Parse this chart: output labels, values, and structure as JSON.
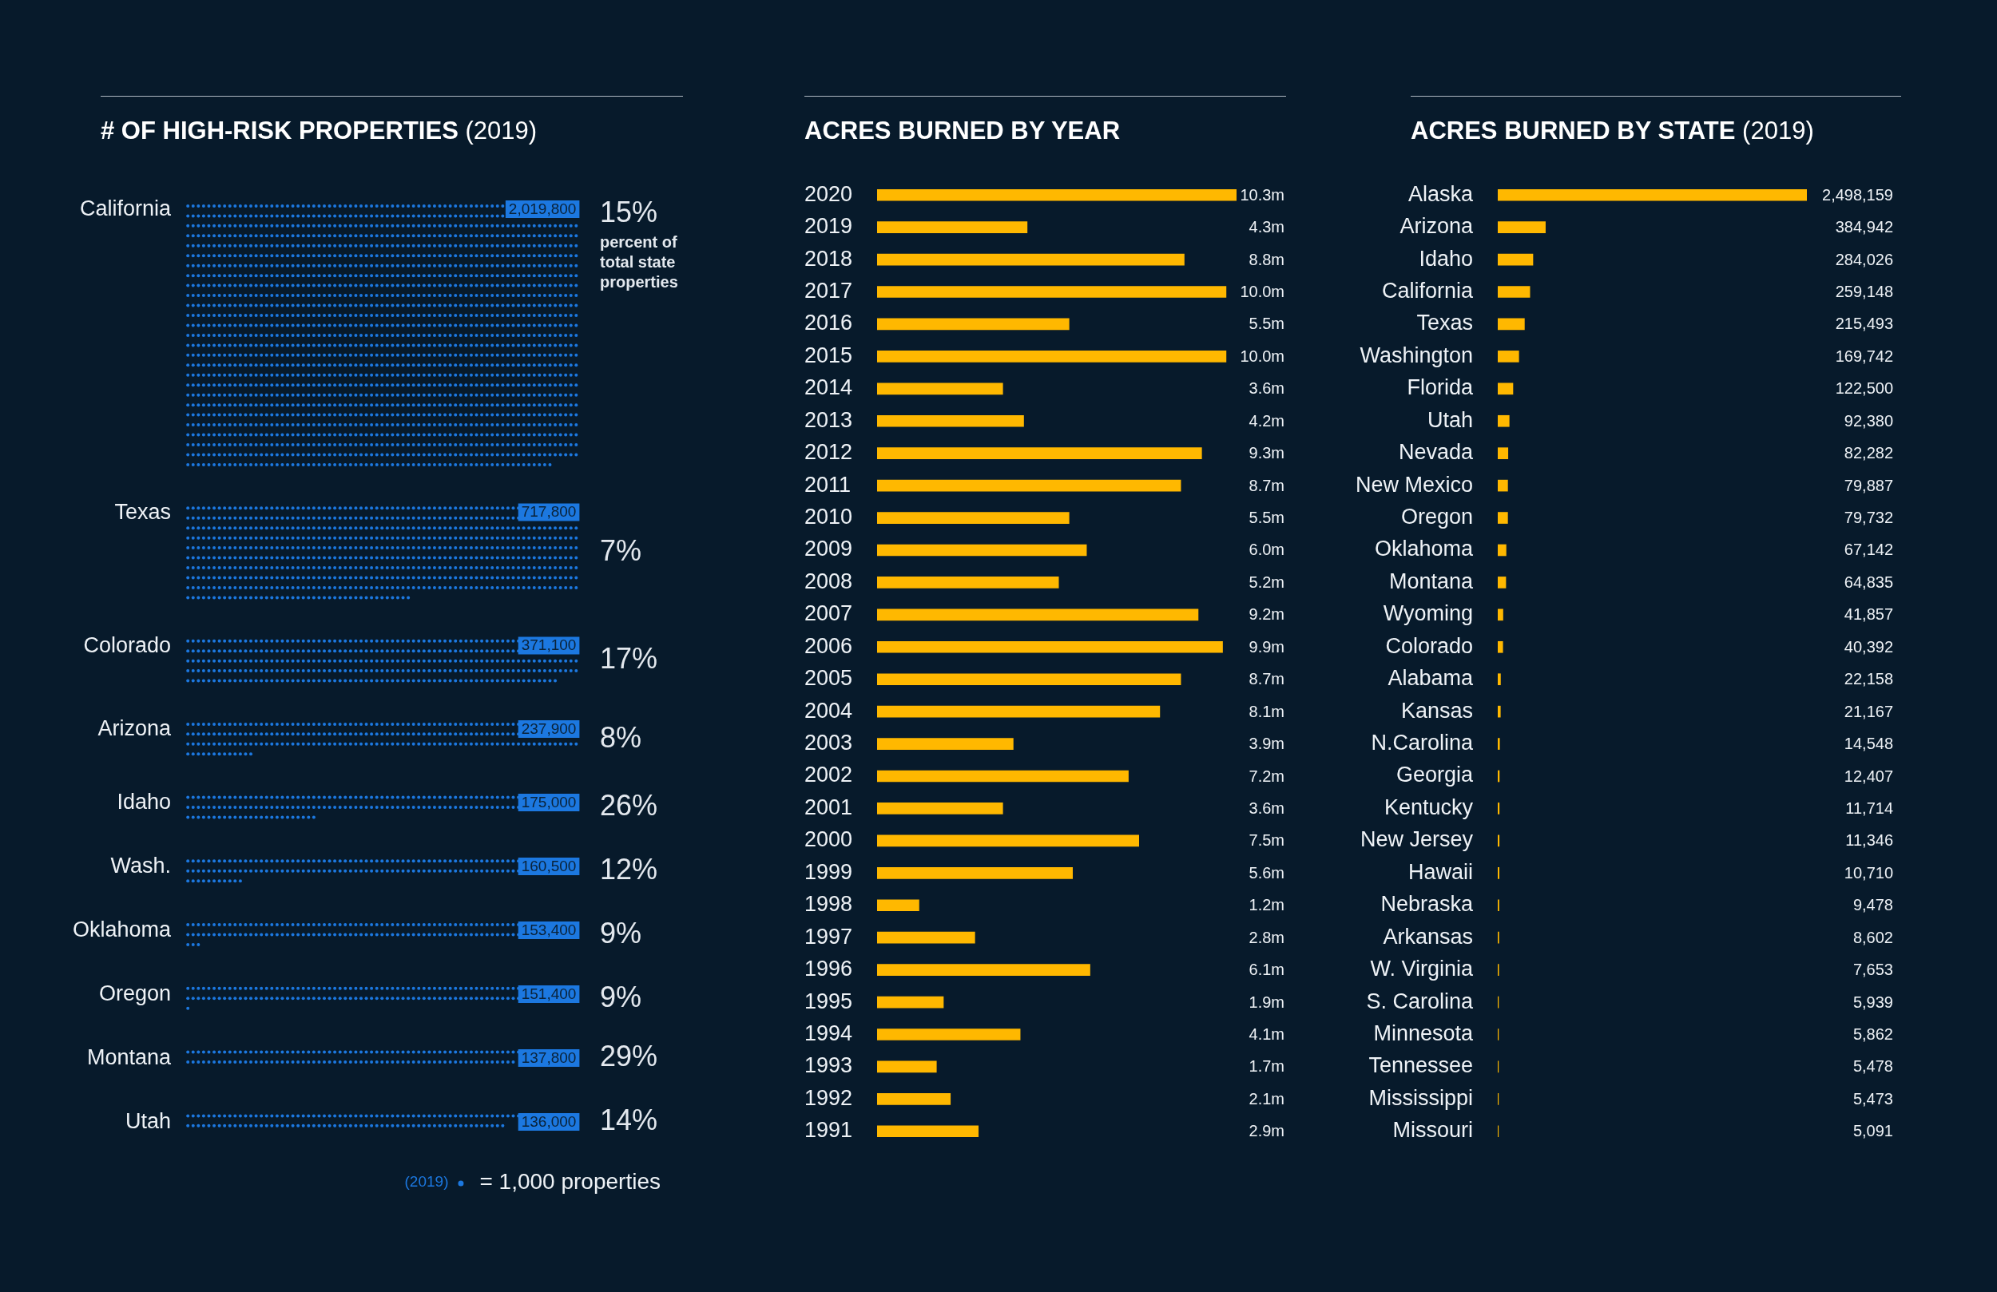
{
  "chart_data": [
    {
      "type": "other",
      "title": "# OF HIGH-RISK PROPERTIES (2019)",
      "categories": [
        "California",
        "Texas",
        "Colorado",
        "Arizona",
        "Idaho",
        "Wash.",
        "Oklahoma",
        "Oregon",
        "Montana",
        "Utah"
      ],
      "series": [
        {
          "name": "(2019)",
          "color": "#1c78e0",
          "values": [
            2019800,
            717800,
            371100,
            237900,
            175000,
            160500,
            153400,
            151400,
            137800,
            136000
          ],
          "value_labels": [
            "2,019,800",
            "717,800",
            "371,100",
            "237,900",
            "175,000",
            "160,500",
            "153,400",
            "151,400",
            "137,800",
            "136,000"
          ]
        },
        {
          "name": "percent of total state properties",
          "color": "#e3e8ee",
          "values": [
            15,
            7,
            17,
            8,
            26,
            12,
            9,
            9,
            29,
            14
          ],
          "value_labels": [
            "15%",
            "7%",
            "17%",
            "8%",
            "26%",
            "12%",
            "9%",
            "9%",
            "29%",
            "14%"
          ]
        }
      ],
      "legend": "bottom",
      "annotations": [
        "= 1,000 properties"
      ]
    },
    {
      "type": "bar",
      "orientation": "horizontal",
      "title": "ACRES BURNED BY YEAR",
      "categories": [
        "2020",
        "2019",
        "2018",
        "2017",
        "2016",
        "2015",
        "2014",
        "2013",
        "2012",
        "2011",
        "2010",
        "2009",
        "2008",
        "2007",
        "2006",
        "2005",
        "2004",
        "2003",
        "2002",
        "2001",
        "2000",
        "1999",
        "1998",
        "1997",
        "1996",
        "1995",
        "1994",
        "1993",
        "1992",
        "1991"
      ],
      "values": [
        10.3,
        4.3,
        8.8,
        10.0,
        5.5,
        10.0,
        3.6,
        4.2,
        9.3,
        8.7,
        5.5,
        6.0,
        5.2,
        9.2,
        9.9,
        8.7,
        8.1,
        3.9,
        7.2,
        3.6,
        7.5,
        5.6,
        1.2,
        2.8,
        6.1,
        1.9,
        4.1,
        1.7,
        2.1,
        2.9
      ],
      "color": "#ffb800",
      "value_labels": [
        "10.3m",
        "4.3m",
        "8.8m",
        "10.0m",
        "5.5m",
        "10.0m",
        "3.6m",
        "4.2m",
        "9.3m",
        "8.7m",
        "5.5m",
        "6.0m",
        "5.2m",
        "9.2m",
        "9.9m",
        "8.7m",
        "8.1m",
        "3.9m",
        "7.2m",
        "3.6m",
        "7.5m",
        "5.6m",
        "1.2m",
        "2.8m",
        "6.1m",
        "1.9m",
        "4.1m",
        "1.7m",
        "2.1m",
        "2.9m"
      ]
    },
    {
      "type": "bar",
      "orientation": "horizontal",
      "title": "ACRES BURNED BY STATE (2019)",
      "categories": [
        "Alaska",
        "Arizona",
        "Idaho",
        "California",
        "Texas",
        "Washington",
        "Florida",
        "Utah",
        "Nevada",
        "New Mexico",
        "Oregon",
        "Oklahoma",
        "Montana",
        "Wyoming",
        "Colorado",
        "Alabama",
        "Kansas",
        "N.Carolina",
        "Georgia",
        "Kentucky",
        "New Jersey",
        "Hawaii",
        "Nebraska",
        "Arkansas",
        "W. Virginia",
        "S. Carolina",
        "Minnesota",
        "Tennessee",
        "Mississippi",
        "Missouri"
      ],
      "values": [
        2498159,
        384942,
        284026,
        259148,
        215493,
        169742,
        122500,
        92380,
        82282,
        79887,
        79732,
        67142,
        64835,
        41857,
        40392,
        22158,
        21167,
        14548,
        12407,
        11714,
        11346,
        10710,
        9478,
        8602,
        7653,
        5939,
        5862,
        5478,
        5473,
        5091
      ],
      "color": "#ffb800",
      "value_labels": [
        "2,498,159",
        "384,942",
        "284,026",
        "259,148",
        "215,493",
        "169,742",
        "122,500",
        "92,380",
        "82,282",
        "79,887",
        "79,732",
        "67,142",
        "64,835",
        "41,857",
        "40,392",
        "22,158",
        "21,167",
        "14,548",
        "12,407",
        "11,714",
        "11,346",
        "10,710",
        "9,478",
        "8,602",
        "7,653",
        "5,939",
        "5,862",
        "5,478",
        "5,473",
        "5,091"
      ]
    }
  ]
}
